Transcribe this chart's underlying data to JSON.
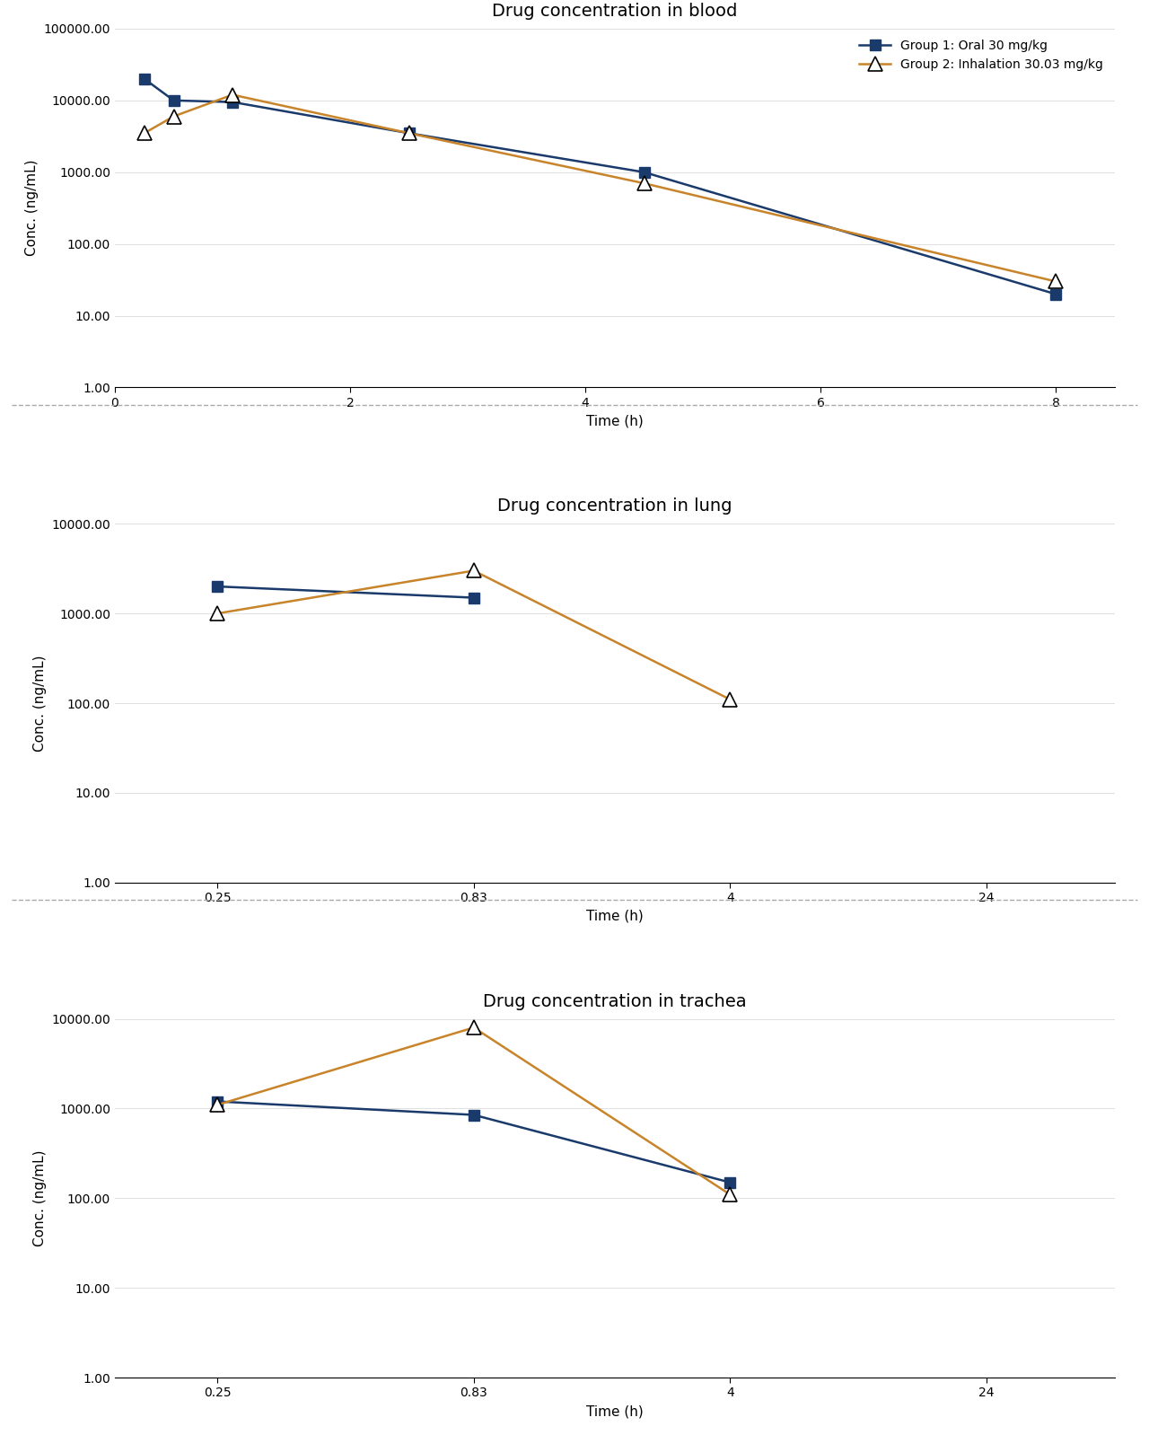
{
  "blood": {
    "title": "Drug concentration in blood",
    "xlabel": "Time (h)",
    "ylabel": "Conc. (ng/mL)",
    "group1": {
      "x": [
        0.25,
        0.5,
        1.0,
        2.5,
        4.5,
        8.0
      ],
      "y": [
        20000,
        10000,
        9500,
        3500,
        1000,
        20
      ],
      "color": "#1a3a6b",
      "marker": "s",
      "linestyle": "-"
    },
    "group2": {
      "x": [
        0.25,
        0.5,
        1.0,
        2.5,
        4.5,
        8.0
      ],
      "y": [
        3500,
        6000,
        12000,
        3500,
        700,
        30
      ],
      "color": "#c8842a",
      "marker": "^",
      "linestyle": "-"
    },
    "xlim": [
      0,
      8.5
    ],
    "xticks": [
      0,
      2,
      4,
      6,
      8
    ],
    "ylim": [
      1.0,
      100000
    ],
    "yticks": [
      1.0,
      10.0,
      100.0,
      1000.0,
      10000.0,
      100000.0
    ],
    "ytick_labels": [
      "1.00",
      "10.00",
      "100.00",
      "1000.00",
      "10000.00",
      "100000.00"
    ]
  },
  "lung": {
    "title": "Drug concentration in lung",
    "xlabel": "Time (h)",
    "ylabel": "Conc. (ng/mL)",
    "group1": {
      "x": [
        0,
        1
      ],
      "y": [
        2000,
        1500
      ],
      "color": "#1a3a6b",
      "marker": "s",
      "linestyle": "-"
    },
    "group2": {
      "x": [
        0,
        1,
        2
      ],
      "y": [
        1000,
        3000,
        110
      ],
      "color": "#c8842a",
      "marker": "^",
      "linestyle": "-"
    },
    "xtick_positions": [
      0,
      1,
      2,
      3
    ],
    "xtick_labels": [
      "0.25",
      "0.83",
      "4",
      "24"
    ],
    "xlim": [
      -0.4,
      3.5
    ],
    "ylim": [
      1.0,
      10000
    ],
    "yticks": [
      1.0,
      10.0,
      100.0,
      1000.0,
      10000.0
    ],
    "ytick_labels": [
      "1.00",
      "10.00",
      "100.00",
      "1000.00",
      "10000.00"
    ]
  },
  "trachea": {
    "title": "Drug concentration in trachea",
    "xlabel": "Time (h)",
    "ylabel": "Conc. (ng/mL)",
    "group1": {
      "x": [
        0,
        1,
        2
      ],
      "y": [
        1200,
        850,
        150
      ],
      "color": "#1a3a6b",
      "marker": "s",
      "linestyle": "-"
    },
    "group2": {
      "x": [
        0,
        1,
        2
      ],
      "y": [
        1100,
        8000,
        110
      ],
      "color": "#c8842a",
      "marker": "^",
      "linestyle": "-"
    },
    "xtick_positions": [
      0,
      1,
      2,
      3
    ],
    "xtick_labels": [
      "0.25",
      "0.83",
      "4",
      "24"
    ],
    "xlim": [
      -0.4,
      3.5
    ],
    "ylim": [
      1.0,
      10000
    ],
    "yticks": [
      1.0,
      10.0,
      100.0,
      1000.0,
      10000.0
    ],
    "ytick_labels": [
      "1.00",
      "10.00",
      "100.00",
      "1000.00",
      "10000.00"
    ]
  },
  "legend": {
    "group1_label": "Group 1: Oral 30 mg/kg",
    "group2_label": "Group 2: Inhalation 30.03 mg/kg",
    "group1_color": "#1a3a6b",
    "group2_color": "#c8842a"
  },
  "bg_color": "#ffffff",
  "panel_bg": "#ffffff",
  "title_fontsize": 14,
  "label_fontsize": 11,
  "tick_fontsize": 10,
  "legend_fontsize": 10,
  "marker_size": 9,
  "linewidth": 1.8
}
